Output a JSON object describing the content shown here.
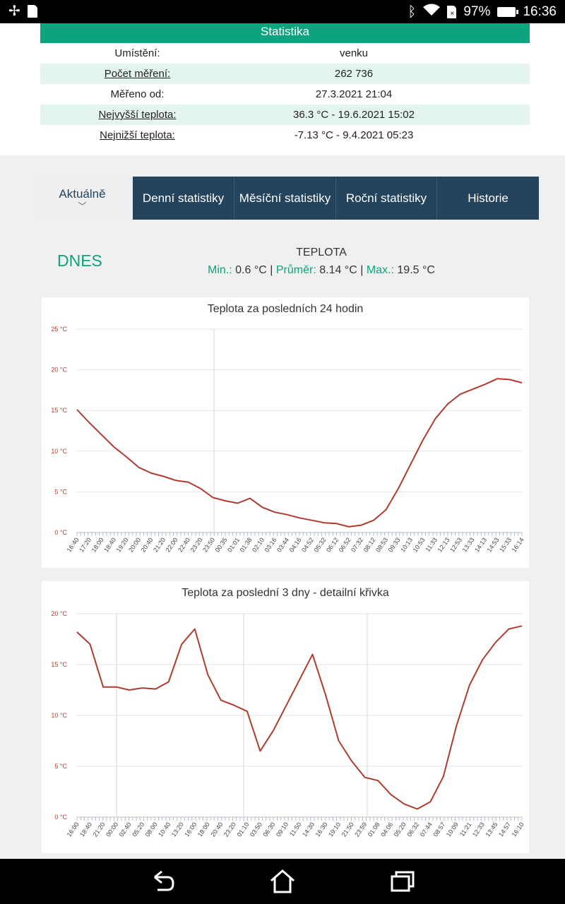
{
  "status_bar": {
    "battery": "97%",
    "time": "16:36",
    "icons": [
      "pinwheel-icon",
      "sd-card-icon",
      "bluetooth-icon",
      "wifi-icon",
      "no-sim-icon",
      "battery-icon"
    ]
  },
  "stats": {
    "title": "Statistika",
    "rows": [
      {
        "label": "Umístění:",
        "value": "venku"
      },
      {
        "label": "Počet měření:",
        "value": "262 736"
      },
      {
        "label": "Měřeno od:",
        "value": "27.3.2021 21:04"
      },
      {
        "label": "Nejvyšší teplota:",
        "value": "36.3 °C - 19.6.2021 15:02"
      },
      {
        "label": "Nejnižší teplota:",
        "value": "-7.13 °C - 9.4.2021 05:23"
      }
    ]
  },
  "tabs": [
    {
      "label": "Aktuálně",
      "active": true
    },
    {
      "label": "Denní statistiky",
      "active": false
    },
    {
      "label": "Měsíční statistiky",
      "active": false
    },
    {
      "label": "Roční statistiky",
      "active": false
    },
    {
      "label": "Historie",
      "active": false
    }
  ],
  "today": {
    "label": "DNES",
    "title": "TEPLOTA",
    "min_label": "Min.:",
    "min_value": "0.6 °C",
    "avg_label": "Průměr:",
    "avg_value": "8.14 °C",
    "max_label": "Max.:",
    "max_value": "19.5 °C",
    "sep": "|"
  },
  "colors": {
    "accent": "#0da37f",
    "tab_bg": "#24435c",
    "line": "#b03a2e"
  },
  "chart_data": [
    {
      "type": "line",
      "title": "Teplota za posledních 24 hodin",
      "ylim": [
        0,
        25
      ],
      "yticks": [
        "0 °C",
        "5 °C",
        "10 °C",
        "15 °C",
        "20 °C",
        "25 °C"
      ],
      "xticks": [
        "16:40",
        "17:20",
        "18:00",
        "18:40",
        "19:20",
        "20:00",
        "20:40",
        "21:20",
        "22:00",
        "22:40",
        "23:20",
        "23:50",
        "00:35",
        "01:01",
        "01:38",
        "02:10",
        "03:16",
        "03:44",
        "04:16",
        "04:52",
        "05:32",
        "06:12",
        "06:52",
        "07:32",
        "08:12",
        "08:53",
        "09:33",
        "10:13",
        "10:53",
        "11:33",
        "12:13",
        "12:53",
        "13:33",
        "14:13",
        "14:53",
        "15:33",
        "16:14"
      ],
      "grid": true,
      "series": [
        {
          "x": [
            0,
            1,
            2,
            3,
            4,
            5,
            6,
            7,
            8,
            9,
            10,
            11,
            12,
            13,
            14,
            15,
            16,
            17,
            18,
            19,
            20,
            21,
            22,
            23,
            24,
            25,
            26,
            27,
            28,
            29,
            30,
            31,
            32,
            33,
            34,
            35,
            36
          ],
          "values": [
            15.1,
            13.5,
            12,
            10.5,
            9.3,
            8,
            7.3,
            6.9,
            6.4,
            6.2,
            5.4,
            4.3,
            3.9,
            3.6,
            4.2,
            3.1,
            2.5,
            2.2,
            1.8,
            1.5,
            1.2,
            1.1,
            0.7,
            0.9,
            1.5,
            2.8,
            5.4,
            8.4,
            11.4,
            14.0,
            15.8,
            17.0,
            17.6,
            18.2,
            18.9,
            18.8,
            18.4
          ]
        }
      ]
    },
    {
      "type": "line",
      "title": "Teplota za poslední 3 dny - detailní křivka",
      "ylim": [
        0,
        20
      ],
      "yticks": [
        "0 °C",
        "5 °C",
        "10 °C",
        "15 °C",
        "20 °C"
      ],
      "xticks": [
        "16:00",
        "18:40",
        "21:20",
        "00:00",
        "02:40",
        "05:20",
        "08:00",
        "10:40",
        "13:20",
        "16:00",
        "18:00",
        "20:40",
        "23:20",
        "01:10",
        "03:50",
        "06:30",
        "09:10",
        "11:50",
        "14:30",
        "16:30",
        "19:10",
        "21:50",
        "23:59",
        "01:08",
        "04:06",
        "05:20",
        "06:32",
        "07:44",
        "08:57",
        "10:09",
        "11:21",
        "12:33",
        "13:45",
        "14:57",
        "16:10"
      ],
      "grid": true,
      "series": [
        {
          "x": [
            0,
            1,
            2,
            3,
            4,
            5,
            6,
            7,
            8,
            9,
            10,
            11,
            12,
            13,
            14,
            15,
            16,
            17,
            18,
            19,
            20,
            21,
            22,
            23,
            24,
            25,
            26,
            27,
            28,
            29,
            30,
            31,
            32,
            33,
            34
          ],
          "values": [
            18.2,
            17.0,
            12.8,
            12.8,
            12.5,
            12.7,
            12.6,
            13.3,
            17.0,
            18.5,
            14.0,
            11.5,
            11.0,
            10.4,
            6.5,
            8.5,
            11.0,
            13.5,
            16.0,
            12.0,
            7.5,
            5.5,
            3.9,
            3.6,
            2.2,
            1.3,
            0.8,
            1.5,
            4.0,
            9.0,
            13.0,
            15.5,
            17.2,
            18.5,
            18.8
          ]
        }
      ]
    }
  ]
}
